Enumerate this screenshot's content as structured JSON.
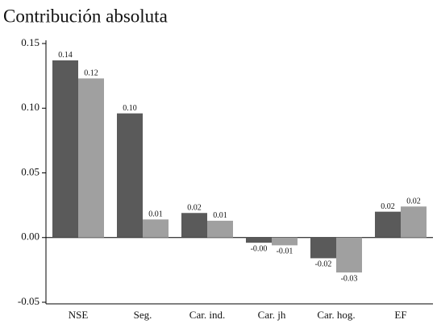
{
  "chart_data": {
    "type": "bar",
    "title": "Contribución absoluta",
    "categories": [
      "NSE",
      "Seg.",
      "Car. ind.",
      "Car. jh",
      "Car. hog.",
      "EF"
    ],
    "series": [
      {
        "color": "#5a5a5a",
        "values": [
          0.137,
          0.096,
          0.019,
          -0.004,
          -0.016,
          0.02
        ],
        "value_labels": [
          "0.14",
          "0.10",
          "0.02",
          "-0.00",
          "-0.02",
          "0.02"
        ]
      },
      {
        "color": "#a0a0a0",
        "values": [
          0.123,
          0.014,
          0.013,
          -0.006,
          -0.027,
          0.024
        ],
        "value_labels": [
          "0.12",
          "0.01",
          "0.01",
          "-0.01",
          "-0.03",
          "0.02"
        ]
      }
    ],
    "ylim": [
      -0.05,
      0.15
    ],
    "yticks": [
      {
        "value": -0.05,
        "label": "-0.05"
      },
      {
        "value": 0,
        "label": "0.00"
      },
      {
        "value": 0.05,
        "label": "0.05"
      },
      {
        "value": 0.1,
        "label": "0.10"
      },
      {
        "value": 0.15,
        "label": "0.15"
      }
    ]
  }
}
